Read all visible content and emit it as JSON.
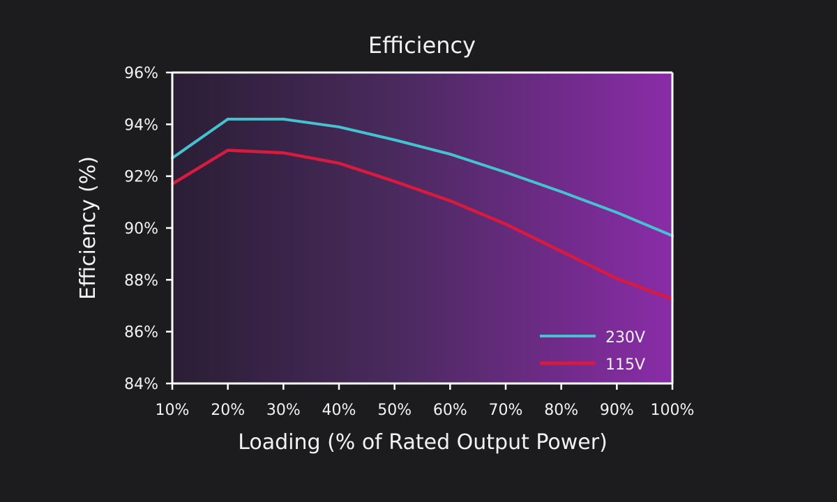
{
  "chart_data": {
    "type": "line",
    "title": "Efficiency",
    "xlabel": "Loading (% of Rated Output Power)",
    "ylabel": "Efficiency (%)",
    "categories": [
      "10%",
      "20%",
      "30%",
      "40%",
      "50%",
      "60%",
      "70%",
      "80%",
      "90%",
      "100%"
    ],
    "x": [
      10,
      20,
      30,
      40,
      50,
      60,
      70,
      80,
      90,
      100
    ],
    "xlim": [
      10,
      100
    ],
    "ylim": [
      84,
      96
    ],
    "yticks": [
      84,
      86,
      88,
      90,
      92,
      94,
      96
    ],
    "ytick_labels": [
      "84%",
      "86%",
      "88%",
      "90%",
      "92%",
      "94%",
      "96%"
    ],
    "grid": false,
    "legend_position": "bottom-right",
    "background": "horizontal gradient from dark navy-purple to magenta-purple",
    "series": [
      {
        "name": "230V",
        "color": "#45c2cf",
        "values": [
          92.7,
          94.2,
          94.2,
          93.9,
          93.4,
          92.85,
          92.15,
          91.4,
          90.6,
          89.7
        ]
      },
      {
        "name": "115V",
        "color": "#d81a3e",
        "values": [
          91.7,
          93.0,
          92.9,
          92.5,
          91.8,
          91.05,
          90.15,
          89.1,
          88.05,
          87.25
        ]
      }
    ]
  },
  "colors": {
    "page_background": "#1c1c1e",
    "plot_gradient_start": "#2a1e34",
    "plot_gradient_end": "#8a2ca8",
    "axis": "#ffffff",
    "text": "#f2f2f2"
  }
}
